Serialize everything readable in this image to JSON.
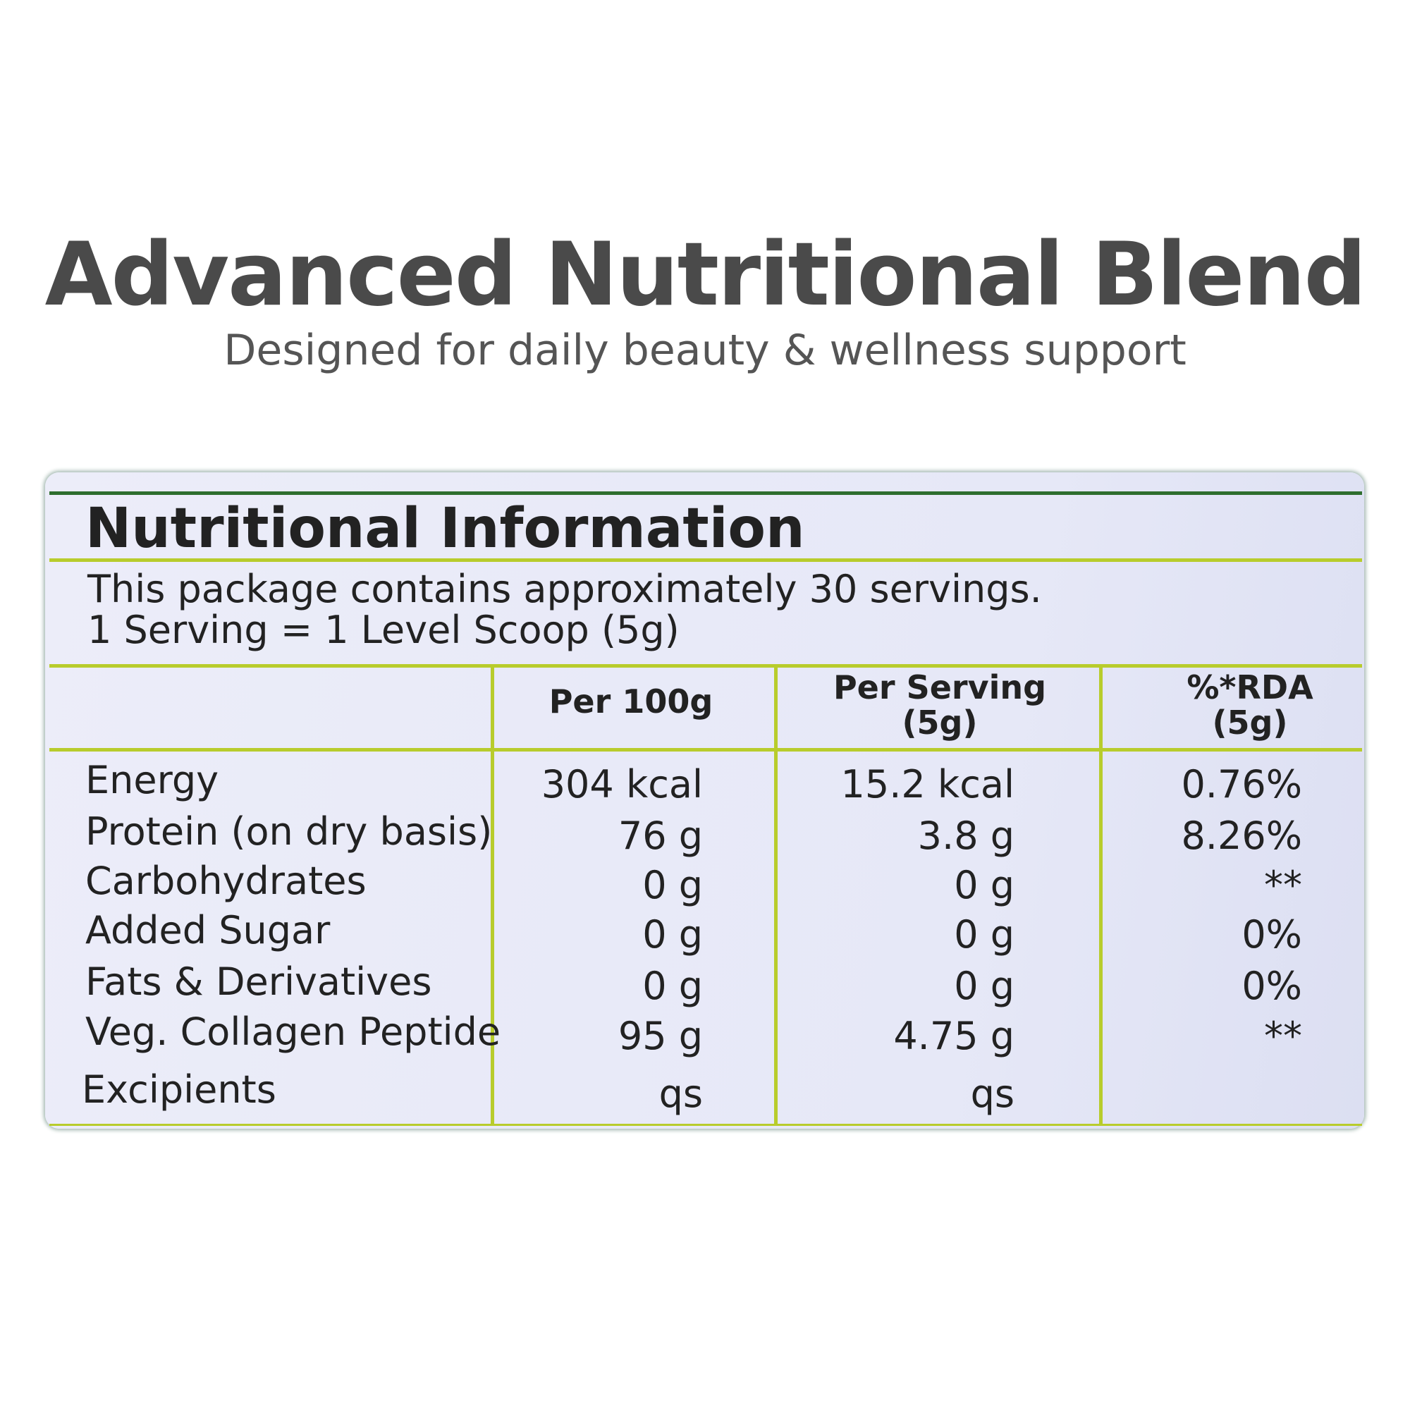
{
  "header": {
    "title": "Advanced Nutritional Blend",
    "subtitle": "Designed for daily beauty & wellness support"
  },
  "panel": {
    "title": "Nutritional Information",
    "lines": [
      "This package contains approximately 30 servings.",
      "1 Serving = 1 Level Scoop (5g)"
    ]
  },
  "table": {
    "columns": [
      "Per 100g",
      "Per Serving\n(5g)",
      "%*RDA\n(5g)"
    ],
    "rows": [
      [
        "Energy",
        "304 kcal",
        "15.2 kcal",
        "0.76%"
      ],
      [
        "Protein (on dry basis)",
        "76 g",
        "3.8 g",
        "8.26%"
      ],
      [
        "Carbohydrates",
        "0 g",
        "0 g",
        "**"
      ],
      [
        "Added Sugar",
        "0 g",
        "0 g",
        "0%"
      ],
      [
        "Fats & Derivatives",
        "0 g",
        "0 g",
        "0%"
      ],
      [
        "Veg. Collagen Peptide",
        "95 g",
        "4.75 g",
        "**"
      ],
      [
        "Excipients",
        "qs",
        "qs"
      ]
    ]
  }
}
